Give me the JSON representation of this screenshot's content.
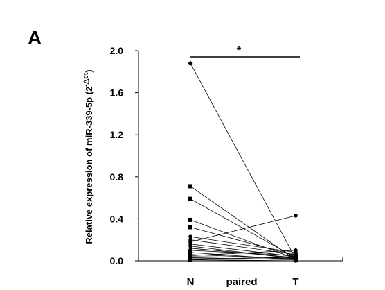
{
  "panel_label": "A",
  "chart_data": {
    "type": "scatter",
    "subtype": "paired-lines",
    "categories": [
      "N",
      "T"
    ],
    "center_label": "paired",
    "ylabel": {
      "base": "Relative expression of miR-339-5p (2",
      "superscript": "-△ct",
      "close": ")"
    },
    "ylim": [
      0,
      2.0
    ],
    "yticks": [
      "0.0",
      "0.4",
      "0.8",
      "1.2",
      "1.6",
      "2.0"
    ],
    "significance": "*",
    "pairs": [
      [
        1.88,
        0.02
      ],
      [
        0.71,
        0.01
      ],
      [
        0.59,
        0.03
      ],
      [
        0.39,
        0.02
      ],
      [
        0.32,
        0.05
      ],
      [
        0.23,
        0.08
      ],
      [
        0.2,
        0.06
      ],
      [
        0.18,
        0.43
      ],
      [
        0.16,
        0.04
      ],
      [
        0.14,
        0.02
      ],
      [
        0.12,
        0.03
      ],
      [
        0.1,
        0.05
      ],
      [
        0.08,
        0.01
      ],
      [
        0.06,
        0.02
      ],
      [
        0.05,
        0.1
      ],
      [
        0.04,
        0.03
      ],
      [
        0.03,
        0.01
      ],
      [
        0.02,
        0.02
      ],
      [
        0.01,
        0.04
      ],
      [
        0.01,
        0.0
      ]
    ],
    "markers": [
      "diamond",
      "square",
      "square",
      "square",
      "square",
      "circle",
      "circle",
      "circle",
      "circle",
      "circle",
      "triangle",
      "triangle",
      "square",
      "circle",
      "circle",
      "square",
      "circle",
      "triangle",
      "square",
      "circle"
    ]
  }
}
